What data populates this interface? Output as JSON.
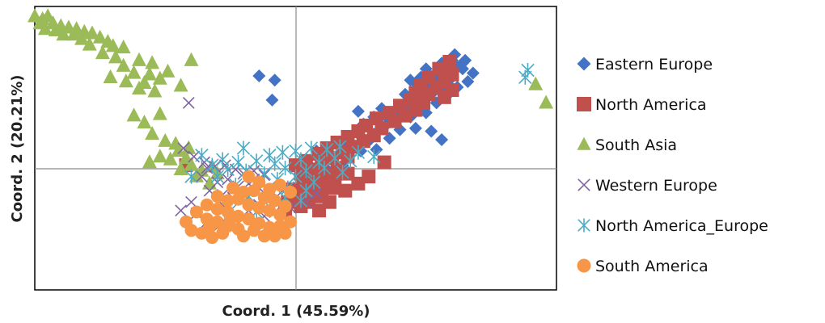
{
  "chart_data": {
    "type": "scatter",
    "title": "",
    "xlabel": "Coord. 1 (45.59%)",
    "ylabel": "Coord. 2 (20.21%)",
    "xlim": [
      -1.0,
      1.0
    ],
    "ylim": [
      -1.0,
      1.0
    ],
    "grid": false,
    "zero_lines": true,
    "legend_position": "right",
    "series": [
      {
        "name": "Eastern Europe",
        "marker": "diamond",
        "color": "#4472C4",
        "points": [
          [
            0.61,
            0.66
          ],
          [
            0.65,
            0.62
          ],
          [
            0.56,
            0.6
          ],
          [
            0.62,
            0.57
          ],
          [
            0.5,
            0.56
          ],
          [
            0.58,
            0.55
          ],
          [
            0.64,
            0.56
          ],
          [
            0.68,
            0.53
          ],
          [
            0.54,
            0.52
          ],
          [
            0.48,
            0.5
          ],
          [
            0.6,
            0.5
          ],
          [
            0.52,
            0.48
          ],
          [
            0.44,
            0.48
          ],
          [
            0.58,
            0.46
          ],
          [
            0.66,
            0.47
          ],
          [
            0.5,
            0.44
          ],
          [
            0.56,
            0.42
          ],
          [
            0.46,
            0.42
          ],
          [
            0.62,
            0.43
          ],
          [
            0.42,
            0.38
          ],
          [
            0.52,
            0.38
          ],
          [
            0.58,
            0.37
          ],
          [
            0.48,
            0.34
          ],
          [
            0.54,
            0.32
          ],
          [
            0.45,
            0.3
          ],
          [
            0.4,
            0.26
          ],
          [
            0.5,
            0.25
          ],
          [
            0.44,
            0.22
          ],
          [
            0.36,
            0.2
          ],
          [
            0.3,
            0.22
          ],
          [
            0.26,
            0.17
          ],
          [
            0.34,
            0.15
          ],
          [
            0.4,
            0.13
          ],
          [
            0.46,
            0.14
          ],
          [
            0.52,
            0.12
          ],
          [
            0.3,
            0.1
          ],
          [
            0.36,
            0.07
          ],
          [
            0.24,
            0.1
          ],
          [
            0.28,
            0.05
          ],
          [
            0.22,
            0.02
          ],
          [
            0.18,
            0.04
          ],
          [
            0.25,
            -0.02
          ],
          [
            0.31,
            -0.01
          ],
          [
            0.2,
            -0.05
          ],
          [
            0.14,
            -0.08
          ],
          [
            0.18,
            -0.12
          ],
          [
            0.12,
            -0.15
          ],
          [
            0.08,
            -0.18
          ],
          [
            0.16,
            -0.2
          ],
          [
            0.06,
            -0.23
          ],
          [
            0.1,
            -0.26
          ],
          [
            0.03,
            -0.28
          ],
          [
            0.06,
            -0.33
          ],
          [
            -0.01,
            -0.35
          ],
          [
            -0.14,
            0.51
          ],
          [
            -0.08,
            0.48
          ],
          [
            -0.09,
            0.34
          ],
          [
            0.24,
            0.26
          ],
          [
            0.56,
            0.06
          ],
          [
            0.08,
            -0.02
          ],
          [
            0.33,
            0.28
          ],
          [
            0.6,
            0.62
          ],
          [
            0.64,
            0.6
          ],
          [
            0.46,
            0.46
          ],
          [
            0.43,
            0.3
          ]
        ]
      },
      {
        "name": "North America",
        "marker": "square",
        "color": "#C0504D",
        "points": [
          [
            0.59,
            0.61
          ],
          [
            0.55,
            0.56
          ],
          [
            0.6,
            0.52
          ],
          [
            0.51,
            0.5
          ],
          [
            0.57,
            0.47
          ],
          [
            0.48,
            0.44
          ],
          [
            0.54,
            0.43
          ],
          [
            0.6,
            0.41
          ],
          [
            0.46,
            0.39
          ],
          [
            0.51,
            0.38
          ],
          [
            0.57,
            0.36
          ],
          [
            0.44,
            0.34
          ],
          [
            0.49,
            0.32
          ],
          [
            0.4,
            0.3
          ],
          [
            0.46,
            0.27
          ],
          [
            0.36,
            0.25
          ],
          [
            0.42,
            0.23
          ],
          [
            0.31,
            0.21
          ],
          [
            0.38,
            0.19
          ],
          [
            0.27,
            0.16
          ],
          [
            0.33,
            0.14
          ],
          [
            0.24,
            0.12
          ],
          [
            0.3,
            0.09
          ],
          [
            0.2,
            0.08
          ],
          [
            0.26,
            0.05
          ],
          [
            0.16,
            0.04
          ],
          [
            0.22,
            0.01
          ],
          [
            0.12,
            0.0
          ],
          [
            0.18,
            -0.03
          ],
          [
            0.09,
            -0.04
          ],
          [
            0.14,
            -0.07
          ],
          [
            0.04,
            -0.09
          ],
          [
            0.1,
            -0.11
          ],
          [
            0.0,
            -0.12
          ],
          [
            0.06,
            -0.15
          ],
          [
            0.16,
            -0.14
          ],
          [
            0.02,
            -0.18
          ],
          [
            0.12,
            -0.19
          ],
          [
            0.2,
            -0.18
          ],
          [
            0.07,
            -0.21
          ],
          [
            0.15,
            -0.22
          ],
          [
            0.03,
            -0.25
          ],
          [
            0.11,
            -0.26
          ],
          [
            -0.01,
            -0.29
          ],
          [
            0.07,
            -0.3
          ],
          [
            0.14,
            -0.28
          ],
          [
            0.02,
            -0.33
          ],
          [
            0.1,
            -0.34
          ],
          [
            0.05,
            -0.38
          ],
          [
            -0.03,
            -0.38
          ],
          [
            0.13,
            -0.38
          ],
          [
            0.19,
            -0.3
          ],
          [
            0.24,
            -0.25
          ],
          [
            0.09,
            -0.44
          ],
          [
            -0.04,
            -0.44
          ],
          [
            0.02,
            -0.41
          ],
          [
            0.28,
            -0.2
          ],
          [
            0.34,
            -0.1
          ],
          [
            -0.42,
            -0.12
          ],
          [
            0.2,
            -0.06
          ]
        ]
      },
      {
        "name": "South Asia",
        "marker": "triangle",
        "color": "#9BBB59",
        "points": [
          [
            -1.0,
            0.93
          ],
          [
            -0.97,
            0.91
          ],
          [
            -0.95,
            0.93
          ],
          [
            -0.98,
            0.88
          ],
          [
            -0.93,
            0.88
          ],
          [
            -0.9,
            0.86
          ],
          [
            -0.96,
            0.84
          ],
          [
            -0.92,
            0.83
          ],
          [
            -0.87,
            0.85
          ],
          [
            -0.84,
            0.84
          ],
          [
            -0.89,
            0.8
          ],
          [
            -0.85,
            0.8
          ],
          [
            -0.81,
            0.82
          ],
          [
            -0.78,
            0.81
          ],
          [
            -0.82,
            0.77
          ],
          [
            -0.75,
            0.78
          ],
          [
            -0.72,
            0.75
          ],
          [
            -0.79,
            0.73
          ],
          [
            -0.7,
            0.72
          ],
          [
            -0.66,
            0.71
          ],
          [
            -0.74,
            0.67
          ],
          [
            -0.69,
            0.64
          ],
          [
            -0.6,
            0.62
          ],
          [
            -0.66,
            0.58
          ],
          [
            -0.55,
            0.6
          ],
          [
            -0.62,
            0.53
          ],
          [
            -0.56,
            0.52
          ],
          [
            -0.49,
            0.54
          ],
          [
            -0.71,
            0.5
          ],
          [
            -0.65,
            0.47
          ],
          [
            -0.58,
            0.46
          ],
          [
            -0.52,
            0.49
          ],
          [
            -0.6,
            0.42
          ],
          [
            -0.54,
            0.4
          ],
          [
            -0.4,
            0.62
          ],
          [
            -0.44,
            0.44
          ],
          [
            -0.52,
            0.24
          ],
          [
            -0.62,
            0.23
          ],
          [
            -0.58,
            0.18
          ],
          [
            -0.55,
            0.1
          ],
          [
            -0.5,
            0.05
          ],
          [
            -0.46,
            0.03
          ],
          [
            -0.41,
            0.0
          ],
          [
            -0.45,
            -0.02
          ],
          [
            -0.52,
            -0.06
          ],
          [
            -0.48,
            -0.08
          ],
          [
            -0.42,
            -0.07
          ],
          [
            -0.4,
            -0.12
          ],
          [
            -0.36,
            -0.16
          ],
          [
            -0.32,
            -0.13
          ],
          [
            -0.3,
            -0.18
          ],
          [
            -0.38,
            -0.2
          ],
          [
            -0.33,
            -0.25
          ],
          [
            0.92,
            0.45
          ],
          [
            0.96,
            0.32
          ],
          [
            -0.56,
            -0.1
          ],
          [
            -0.44,
            -0.15
          ]
        ]
      },
      {
        "name": "Western Europe",
        "marker": "x",
        "color": "#8064A2",
        "points": [
          [
            -0.41,
            0.32
          ],
          [
            -0.43,
            0.0
          ],
          [
            -0.39,
            -0.06
          ],
          [
            -0.35,
            -0.1
          ],
          [
            -0.31,
            -0.13
          ],
          [
            -0.27,
            -0.12
          ],
          [
            -0.23,
            -0.15
          ],
          [
            -0.2,
            -0.18
          ],
          [
            -0.16,
            -0.16
          ],
          [
            -0.12,
            -0.19
          ],
          [
            -0.36,
            -0.2
          ],
          [
            -0.3,
            -0.24
          ],
          [
            -0.26,
            -0.22
          ],
          [
            -0.22,
            -0.27
          ],
          [
            -0.18,
            -0.25
          ],
          [
            -0.14,
            -0.28
          ],
          [
            -0.33,
            -0.3
          ],
          [
            -0.28,
            -0.33
          ],
          [
            -0.24,
            -0.35
          ],
          [
            -0.2,
            -0.32
          ],
          [
            -0.44,
            -0.44
          ],
          [
            -0.38,
            -0.46
          ],
          [
            -0.34,
            -0.52
          ],
          [
            -0.3,
            -0.56
          ],
          [
            -0.26,
            -0.48
          ],
          [
            -0.22,
            -0.52
          ],
          [
            -0.18,
            -0.44
          ],
          [
            -0.14,
            -0.4
          ],
          [
            -0.1,
            -0.36
          ],
          [
            -0.05,
            -0.3
          ],
          [
            -0.08,
            -0.45
          ],
          [
            -0.02,
            -0.42
          ],
          [
            0.04,
            -0.38
          ],
          [
            0.08,
            -0.32
          ],
          [
            -0.12,
            -0.48
          ],
          [
            -0.4,
            -0.38
          ],
          [
            -0.16,
            -0.22
          ],
          [
            -0.28,
            -0.4
          ],
          [
            -0.34,
            -0.14
          ]
        ]
      },
      {
        "name": "North America_Europe",
        "marker": "asterisk",
        "color": "#4BACC6",
        "points": [
          [
            -0.2,
            0.0
          ],
          [
            -0.1,
            -0.05
          ],
          [
            -0.05,
            -0.03
          ],
          [
            0.0,
            -0.02
          ],
          [
            0.06,
            0.0
          ],
          [
            0.12,
            -0.01
          ],
          [
            0.17,
            0.01
          ],
          [
            0.24,
            -0.03
          ],
          [
            0.3,
            -0.06
          ],
          [
            -0.28,
            -0.08
          ],
          [
            -0.22,
            -0.1
          ],
          [
            -0.15,
            -0.09
          ],
          [
            -0.08,
            -0.11
          ],
          [
            0.02,
            -0.08
          ],
          [
            0.09,
            -0.1
          ],
          [
            0.15,
            -0.07
          ],
          [
            0.21,
            -0.09
          ],
          [
            -0.26,
            -0.15
          ],
          [
            -0.19,
            -0.16
          ],
          [
            -0.12,
            -0.18
          ],
          [
            -0.04,
            -0.14
          ],
          [
            0.04,
            -0.16
          ],
          [
            0.11,
            -0.14
          ],
          [
            0.18,
            -0.17
          ],
          [
            -0.14,
            -0.24
          ],
          [
            -0.07,
            -0.22
          ],
          [
            0.0,
            -0.2
          ],
          [
            0.07,
            -0.24
          ],
          [
            -0.3,
            -0.2
          ],
          [
            -0.23,
            -0.26
          ],
          [
            -0.1,
            -0.3
          ],
          [
            -0.03,
            -0.28
          ],
          [
            0.04,
            -0.3
          ],
          [
            -0.18,
            -0.34
          ],
          [
            -0.11,
            -0.37
          ],
          [
            -0.04,
            -0.35
          ],
          [
            0.02,
            -0.37
          ],
          [
            -0.36,
            -0.05
          ],
          [
            -0.32,
            -0.12
          ],
          [
            -0.4,
            -0.2
          ],
          [
            0.89,
            0.55
          ],
          [
            0.88,
            0.5
          ],
          [
            -0.25,
            -0.44
          ],
          [
            -0.15,
            -0.45
          ]
        ]
      },
      {
        "name": "South America",
        "marker": "circle",
        "color": "#F79646",
        "points": [
          [
            -0.18,
            -0.2
          ],
          [
            -0.14,
            -0.24
          ],
          [
            -0.1,
            -0.29
          ],
          [
            -0.06,
            -0.26
          ],
          [
            -0.02,
            -0.31
          ],
          [
            -0.24,
            -0.28
          ],
          [
            -0.2,
            -0.31
          ],
          [
            -0.16,
            -0.3
          ],
          [
            -0.12,
            -0.35
          ],
          [
            -0.08,
            -0.37
          ],
          [
            -0.04,
            -0.41
          ],
          [
            -0.3,
            -0.34
          ],
          [
            -0.26,
            -0.37
          ],
          [
            -0.22,
            -0.36
          ],
          [
            -0.18,
            -0.4
          ],
          [
            -0.14,
            -0.42
          ],
          [
            -0.1,
            -0.44
          ],
          [
            -0.06,
            -0.47
          ],
          [
            -0.34,
            -0.4
          ],
          [
            -0.3,
            -0.43
          ],
          [
            -0.26,
            -0.45
          ],
          [
            -0.22,
            -0.48
          ],
          [
            -0.18,
            -0.5
          ],
          [
            -0.14,
            -0.53
          ],
          [
            -0.38,
            -0.45
          ],
          [
            -0.34,
            -0.5
          ],
          [
            -0.3,
            -0.52
          ],
          [
            -0.26,
            -0.55
          ],
          [
            -0.22,
            -0.57
          ],
          [
            -0.4,
            -0.58
          ],
          [
            -0.36,
            -0.6
          ],
          [
            -0.32,
            -0.63
          ],
          [
            -0.28,
            -0.6
          ],
          [
            -0.2,
            -0.62
          ],
          [
            -0.1,
            -0.56
          ],
          [
            -0.02,
            -0.52
          ],
          [
            -0.04,
            -0.6
          ],
          [
            -0.12,
            -0.62
          ],
          [
            -0.16,
            -0.58
          ],
          [
            -0.06,
            -0.55
          ],
          [
            -0.25,
            -0.5
          ],
          [
            -0.33,
            -0.56
          ],
          [
            -0.42,
            -0.52
          ],
          [
            -0.08,
            -0.62
          ]
        ]
      }
    ]
  }
}
